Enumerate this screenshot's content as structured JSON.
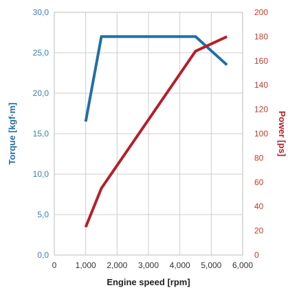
{
  "chart_data": {
    "type": "line",
    "xlabel": "Engine speed [rpm]",
    "ylabel_left": "Torque [kgf·m]",
    "ylabel_right": "Power [ps]",
    "x_ticks": [
      "0",
      "1,000",
      "2,000",
      "3,000",
      "4,000",
      "5,000",
      "6,000"
    ],
    "y_left_ticks": [
      "0,0",
      "5,0",
      "10,0",
      "15,0",
      "20,0",
      "25,0",
      "30,0"
    ],
    "y_right_ticks": [
      "0",
      "20",
      "40",
      "60",
      "80",
      "100",
      "120",
      "140",
      "160",
      "180",
      "200"
    ],
    "xlim": [
      0,
      6000
    ],
    "ylim_left": [
      0,
      30
    ],
    "ylim_right": [
      0,
      200
    ],
    "grid": true,
    "colors": {
      "torque": "#1f6fa6",
      "power": "#b3202a",
      "left_axis": "#3a7fb5",
      "right_axis": "#c0392b"
    },
    "series": [
      {
        "axis": "left",
        "x": [
          1000,
          1500,
          4500,
          5500
        ],
        "y": [
          16.5,
          27.0,
          27.0,
          23.5
        ]
      },
      {
        "axis": "right",
        "x": [
          1000,
          1500,
          4500,
          5500
        ],
        "y": [
          23,
          55,
          168,
          180
        ]
      }
    ]
  }
}
